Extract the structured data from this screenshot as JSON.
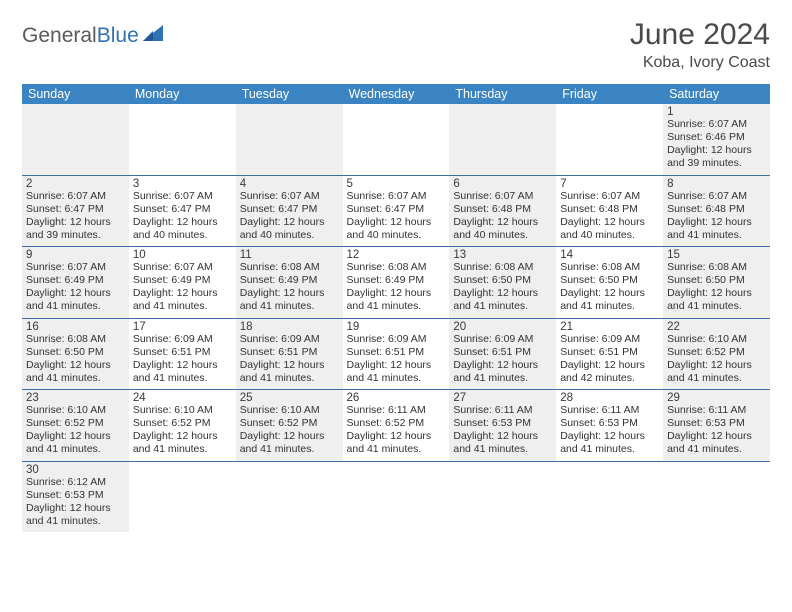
{
  "brand": {
    "part1": "General",
    "part2": "Blue"
  },
  "title": "June 2024",
  "location": "Koba, Ivory Coast",
  "colors": {
    "header_bg": "#3b84c4",
    "header_text": "#ffffff",
    "row_border": "#3b6fa5",
    "alt_cell": "#efefef",
    "page_bg": "#ffffff",
    "brand_gray": "#5a5a5a",
    "brand_blue": "#2f73b6"
  },
  "day_headers": [
    "Sunday",
    "Monday",
    "Tuesday",
    "Wednesday",
    "Thursday",
    "Friday",
    "Saturday"
  ],
  "weeks": [
    [
      null,
      null,
      null,
      null,
      null,
      null,
      {
        "n": "1",
        "sr": "Sunrise: 6:07 AM",
        "ss": "Sunset: 6:46 PM",
        "d1": "Daylight: 12 hours",
        "d2": "and 39 minutes."
      }
    ],
    [
      {
        "n": "2",
        "sr": "Sunrise: 6:07 AM",
        "ss": "Sunset: 6:47 PM",
        "d1": "Daylight: 12 hours",
        "d2": "and 39 minutes."
      },
      {
        "n": "3",
        "sr": "Sunrise: 6:07 AM",
        "ss": "Sunset: 6:47 PM",
        "d1": "Daylight: 12 hours",
        "d2": "and 40 minutes."
      },
      {
        "n": "4",
        "sr": "Sunrise: 6:07 AM",
        "ss": "Sunset: 6:47 PM",
        "d1": "Daylight: 12 hours",
        "d2": "and 40 minutes."
      },
      {
        "n": "5",
        "sr": "Sunrise: 6:07 AM",
        "ss": "Sunset: 6:47 PM",
        "d1": "Daylight: 12 hours",
        "d2": "and 40 minutes."
      },
      {
        "n": "6",
        "sr": "Sunrise: 6:07 AM",
        "ss": "Sunset: 6:48 PM",
        "d1": "Daylight: 12 hours",
        "d2": "and 40 minutes."
      },
      {
        "n": "7",
        "sr": "Sunrise: 6:07 AM",
        "ss": "Sunset: 6:48 PM",
        "d1": "Daylight: 12 hours",
        "d2": "and 40 minutes."
      },
      {
        "n": "8",
        "sr": "Sunrise: 6:07 AM",
        "ss": "Sunset: 6:48 PM",
        "d1": "Daylight: 12 hours",
        "d2": "and 41 minutes."
      }
    ],
    [
      {
        "n": "9",
        "sr": "Sunrise: 6:07 AM",
        "ss": "Sunset: 6:49 PM",
        "d1": "Daylight: 12 hours",
        "d2": "and 41 minutes."
      },
      {
        "n": "10",
        "sr": "Sunrise: 6:07 AM",
        "ss": "Sunset: 6:49 PM",
        "d1": "Daylight: 12 hours",
        "d2": "and 41 minutes."
      },
      {
        "n": "11",
        "sr": "Sunrise: 6:08 AM",
        "ss": "Sunset: 6:49 PM",
        "d1": "Daylight: 12 hours",
        "d2": "and 41 minutes."
      },
      {
        "n": "12",
        "sr": "Sunrise: 6:08 AM",
        "ss": "Sunset: 6:49 PM",
        "d1": "Daylight: 12 hours",
        "d2": "and 41 minutes."
      },
      {
        "n": "13",
        "sr": "Sunrise: 6:08 AM",
        "ss": "Sunset: 6:50 PM",
        "d1": "Daylight: 12 hours",
        "d2": "and 41 minutes."
      },
      {
        "n": "14",
        "sr": "Sunrise: 6:08 AM",
        "ss": "Sunset: 6:50 PM",
        "d1": "Daylight: 12 hours",
        "d2": "and 41 minutes."
      },
      {
        "n": "15",
        "sr": "Sunrise: 6:08 AM",
        "ss": "Sunset: 6:50 PM",
        "d1": "Daylight: 12 hours",
        "d2": "and 41 minutes."
      }
    ],
    [
      {
        "n": "16",
        "sr": "Sunrise: 6:08 AM",
        "ss": "Sunset: 6:50 PM",
        "d1": "Daylight: 12 hours",
        "d2": "and 41 minutes."
      },
      {
        "n": "17",
        "sr": "Sunrise: 6:09 AM",
        "ss": "Sunset: 6:51 PM",
        "d1": "Daylight: 12 hours",
        "d2": "and 41 minutes."
      },
      {
        "n": "18",
        "sr": "Sunrise: 6:09 AM",
        "ss": "Sunset: 6:51 PM",
        "d1": "Daylight: 12 hours",
        "d2": "and 41 minutes."
      },
      {
        "n": "19",
        "sr": "Sunrise: 6:09 AM",
        "ss": "Sunset: 6:51 PM",
        "d1": "Daylight: 12 hours",
        "d2": "and 41 minutes."
      },
      {
        "n": "20",
        "sr": "Sunrise: 6:09 AM",
        "ss": "Sunset: 6:51 PM",
        "d1": "Daylight: 12 hours",
        "d2": "and 41 minutes."
      },
      {
        "n": "21",
        "sr": "Sunrise: 6:09 AM",
        "ss": "Sunset: 6:51 PM",
        "d1": "Daylight: 12 hours",
        "d2": "and 42 minutes."
      },
      {
        "n": "22",
        "sr": "Sunrise: 6:10 AM",
        "ss": "Sunset: 6:52 PM",
        "d1": "Daylight: 12 hours",
        "d2": "and 41 minutes."
      }
    ],
    [
      {
        "n": "23",
        "sr": "Sunrise: 6:10 AM",
        "ss": "Sunset: 6:52 PM",
        "d1": "Daylight: 12 hours",
        "d2": "and 41 minutes."
      },
      {
        "n": "24",
        "sr": "Sunrise: 6:10 AM",
        "ss": "Sunset: 6:52 PM",
        "d1": "Daylight: 12 hours",
        "d2": "and 41 minutes."
      },
      {
        "n": "25",
        "sr": "Sunrise: 6:10 AM",
        "ss": "Sunset: 6:52 PM",
        "d1": "Daylight: 12 hours",
        "d2": "and 41 minutes."
      },
      {
        "n": "26",
        "sr": "Sunrise: 6:11 AM",
        "ss": "Sunset: 6:52 PM",
        "d1": "Daylight: 12 hours",
        "d2": "and 41 minutes."
      },
      {
        "n": "27",
        "sr": "Sunrise: 6:11 AM",
        "ss": "Sunset: 6:53 PM",
        "d1": "Daylight: 12 hours",
        "d2": "and 41 minutes."
      },
      {
        "n": "28",
        "sr": "Sunrise: 6:11 AM",
        "ss": "Sunset: 6:53 PM",
        "d1": "Daylight: 12 hours",
        "d2": "and 41 minutes."
      },
      {
        "n": "29",
        "sr": "Sunrise: 6:11 AM",
        "ss": "Sunset: 6:53 PM",
        "d1": "Daylight: 12 hours",
        "d2": "and 41 minutes."
      }
    ],
    [
      {
        "n": "30",
        "sr": "Sunrise: 6:12 AM",
        "ss": "Sunset: 6:53 PM",
        "d1": "Daylight: 12 hours",
        "d2": "and 41 minutes."
      },
      null,
      null,
      null,
      null,
      null,
      null
    ]
  ]
}
